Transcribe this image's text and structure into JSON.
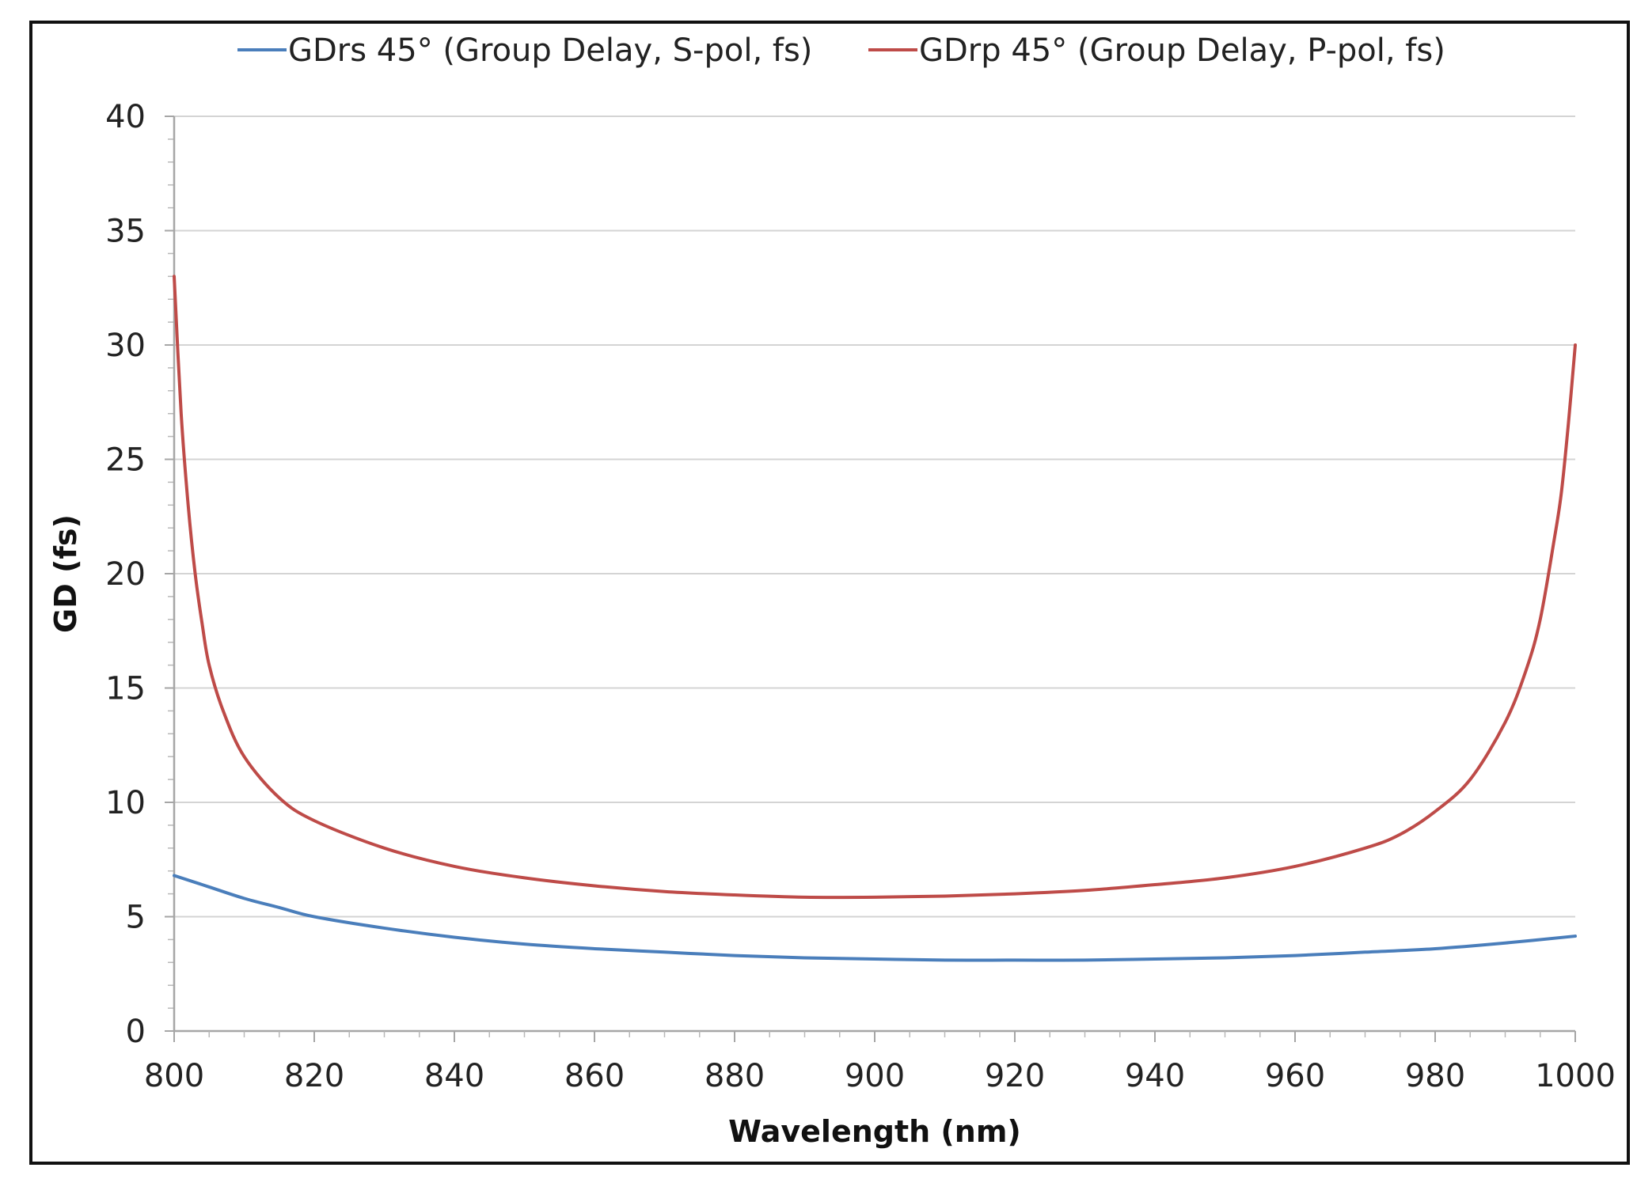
{
  "chart_data": {
    "type": "line",
    "title": "",
    "xlabel": "Wavelength (nm)",
    "ylabel": "GD (fs)",
    "xlim": [
      800,
      1000
    ],
    "ylim": [
      0,
      40
    ],
    "x_ticks": [
      800,
      820,
      840,
      860,
      880,
      900,
      920,
      940,
      960,
      980,
      1000
    ],
    "y_ticks": [
      0,
      5,
      10,
      15,
      20,
      25,
      30,
      35,
      40
    ],
    "grid": "horizontal",
    "legend_position": "top",
    "series": [
      {
        "name": "GDrs 45° (Group Delay, S-pol, fs)",
        "color": "#4a7ebb",
        "points": [
          [
            800,
            6.8
          ],
          [
            805,
            6.3
          ],
          [
            810,
            5.8
          ],
          [
            815,
            5.4
          ],
          [
            820,
            5.0
          ],
          [
            830,
            4.5
          ],
          [
            840,
            4.1
          ],
          [
            850,
            3.8
          ],
          [
            860,
            3.6
          ],
          [
            870,
            3.45
          ],
          [
            880,
            3.3
          ],
          [
            890,
            3.2
          ],
          [
            900,
            3.15
          ],
          [
            910,
            3.1
          ],
          [
            920,
            3.1
          ],
          [
            930,
            3.1
          ],
          [
            940,
            3.15
          ],
          [
            950,
            3.2
          ],
          [
            960,
            3.3
          ],
          [
            970,
            3.45
          ],
          [
            980,
            3.6
          ],
          [
            990,
            3.85
          ],
          [
            1000,
            4.15
          ]
        ]
      },
      {
        "name": "GDrp 45° (Group Delay, P-pol, fs)",
        "color": "#be4b48",
        "points": [
          [
            800,
            33.0
          ],
          [
            801,
            27.0
          ],
          [
            802,
            23.0
          ],
          [
            803,
            20.0
          ],
          [
            804,
            17.8
          ],
          [
            805,
            16.0
          ],
          [
            807,
            14.0
          ],
          [
            810,
            12.0
          ],
          [
            815,
            10.2
          ],
          [
            820,
            9.2
          ],
          [
            830,
            8.0
          ],
          [
            840,
            7.2
          ],
          [
            850,
            6.7
          ],
          [
            860,
            6.35
          ],
          [
            870,
            6.1
          ],
          [
            880,
            5.95
          ],
          [
            890,
            5.85
          ],
          [
            900,
            5.85
          ],
          [
            910,
            5.9
          ],
          [
            920,
            6.0
          ],
          [
            930,
            6.15
          ],
          [
            940,
            6.4
          ],
          [
            950,
            6.7
          ],
          [
            960,
            7.2
          ],
          [
            970,
            8.0
          ],
          [
            975,
            8.6
          ],
          [
            980,
            9.6
          ],
          [
            985,
            11.0
          ],
          [
            990,
            13.5
          ],
          [
            993,
            15.8
          ],
          [
            995,
            18.0
          ],
          [
            997,
            21.5
          ],
          [
            998,
            23.5
          ],
          [
            999,
            26.5
          ],
          [
            1000,
            30.0
          ]
        ]
      }
    ]
  }
}
